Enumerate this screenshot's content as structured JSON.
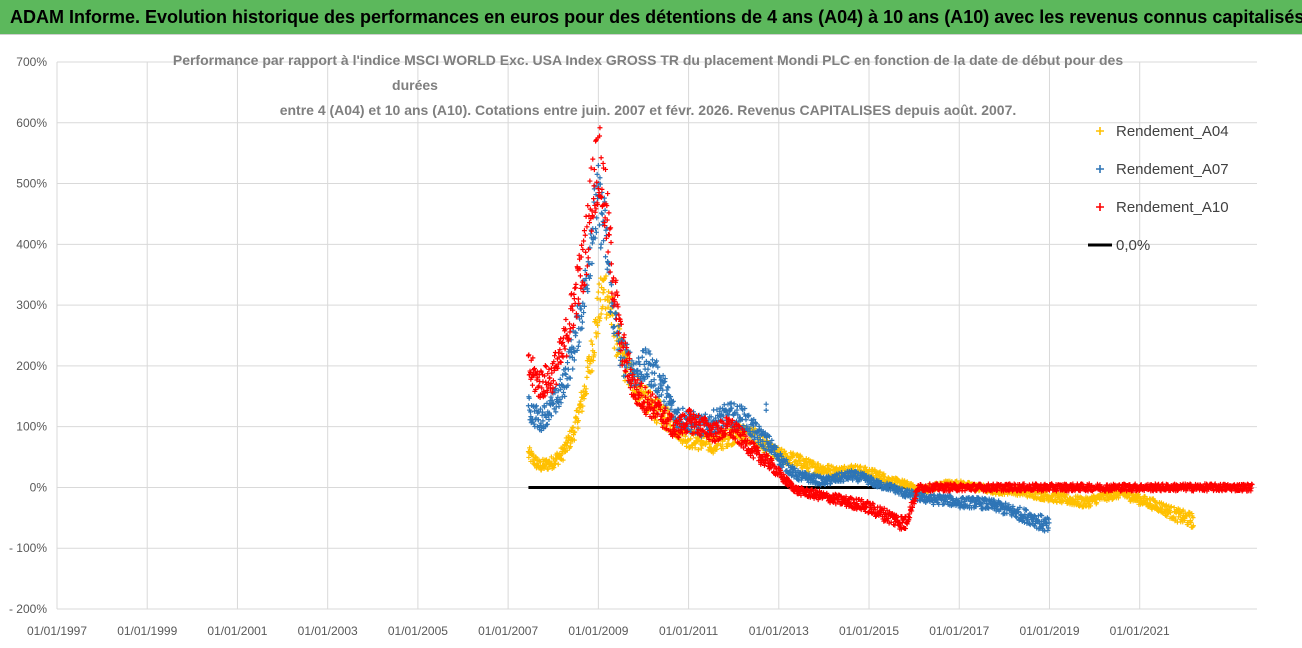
{
  "banner": {
    "title": "ADAM Informe. Evolution historique des performances en euros pour des détentions de 4 ans (A04) à 10 ans (A10) avec les revenus connus capitalisés"
  },
  "colors": {
    "banner_bg": "#5cb85c",
    "A04": "#ffc000",
    "A07": "#2e75b6",
    "A10": "#ff0000",
    "zero": "#000000",
    "grid": "#d9d9d9"
  },
  "chart_data": {
    "type": "scatter",
    "title_lines": [
      "Performance par rapport à l'indice MSCI WORLD Exc. USA Index GROSS TR  du placement Mondi PLC en fonction de la date de début pour des",
      "durées",
      "entre 4 (A04) et 10 ans (A10). Cotations entre juin. 2007 et févr. 2026. Revenus CAPITALISES depuis août. 2007."
    ],
    "xlabel": "",
    "ylabel": "",
    "xlim": [
      1997.0,
      2023.6
    ],
    "ylim": [
      -200,
      700
    ],
    "y_ticks": [
      "700%",
      "600%",
      "500%",
      "400%",
      "300%",
      "200%",
      "100%",
      "0%",
      "- 100%",
      "- 200%"
    ],
    "y_tick_values": [
      700,
      600,
      500,
      400,
      300,
      200,
      100,
      0,
      -100,
      -200
    ],
    "x_ticks": [
      "01/01/1997",
      "01/01/1999",
      "01/01/2001",
      "01/01/2003",
      "01/01/2005",
      "01/01/2007",
      "01/01/2009",
      "01/01/2011",
      "01/01/2013",
      "01/01/2015",
      "01/01/2017",
      "01/01/2019",
      "01/01/2021"
    ],
    "x_tick_values": [
      1997,
      1999,
      2001,
      2003,
      2005,
      2007,
      2009,
      2011,
      2013,
      2015,
      2017,
      2019,
      2021
    ],
    "legend": [
      "Rendement_A04",
      "Rendement_A07",
      "Rendement_A10",
      "0,0%"
    ],
    "legend_position": "top-right",
    "series": [
      {
        "name": "Rendement_A04",
        "x": [
          2007.45,
          2007.7,
          2007.95,
          2008.2,
          2008.45,
          2008.7,
          2008.85,
          2009.0,
          2009.15,
          2009.3,
          2009.5,
          2009.8,
          2010.1,
          2010.4,
          2010.7,
          2011.0,
          2011.3,
          2011.6,
          2011.9,
          2012.2,
          2012.5,
          2012.8,
          2013.1,
          2013.4,
          2013.7,
          2014.0,
          2014.3,
          2014.6,
          2014.9,
          2015.2,
          2015.5,
          2015.8,
          2016.1,
          2016.4,
          2016.7,
          2017.0,
          2017.4,
          2017.8,
          2018.2,
          2018.6,
          2019.0,
          2019.4,
          2019.8,
          2020.2,
          2020.6,
          2021.0,
          2021.4,
          2021.8,
          2022.2
        ],
        "values": [
          55,
          35,
          40,
          55,
          90,
          160,
          220,
          290,
          330,
          280,
          220,
          170,
          140,
          120,
          100,
          80,
          75,
          70,
          85,
          90,
          80,
          60,
          50,
          45,
          35,
          30,
          25,
          30,
          25,
          20,
          10,
          5,
          -5,
          0,
          5,
          5,
          0,
          -5,
          -5,
          -10,
          -15,
          -20,
          -25,
          -15,
          -10,
          -20,
          -30,
          -45,
          -55
        ]
      },
      {
        "name": "Rendement_A07",
        "x": [
          2007.45,
          2007.7,
          2007.95,
          2008.2,
          2008.45,
          2008.7,
          2008.85,
          2009.0,
          2009.15,
          2009.3,
          2009.5,
          2009.8,
          2010.1,
          2010.4,
          2010.7,
          2011.0,
          2011.3,
          2011.6,
          2011.9,
          2012.2,
          2012.5,
          2012.8,
          2013.1,
          2013.4,
          2013.7,
          2014.0,
          2014.3,
          2014.6,
          2014.9,
          2015.2,
          2015.5,
          2015.8,
          2016.1,
          2016.4,
          2016.7,
          2017.0,
          2017.4,
          2017.8,
          2018.2,
          2018.6,
          2019.0
        ],
        "values": [
          130,
          110,
          130,
          160,
          230,
          320,
          420,
          470,
          420,
          300,
          220,
          190,
          200,
          170,
          120,
          110,
          100,
          110,
          120,
          115,
          90,
          70,
          40,
          20,
          15,
          10,
          15,
          20,
          15,
          5,
          0,
          -10,
          -15,
          -20,
          -20,
          -25,
          -25,
          -30,
          -40,
          -50,
          -65
        ]
      },
      {
        "name": "Rendement_A10",
        "x": [
          2007.45,
          2007.7,
          2007.95,
          2008.2,
          2008.45,
          2008.7,
          2008.85,
          2009.0,
          2009.15,
          2009.3,
          2009.5,
          2009.8,
          2010.1,
          2010.4,
          2010.7,
          2011.0,
          2011.3,
          2011.6,
          2011.9,
          2012.2,
          2012.5,
          2012.8,
          2013.1,
          2013.4,
          2013.7,
          2014.0,
          2014.3,
          2014.6,
          2014.9,
          2015.2,
          2015.5,
          2015.8,
          2016.1,
          2016.5,
          2017.0,
          2017.5,
          2018.0,
          2018.5,
          2019.0,
          2019.5,
          2020.0,
          2020.5,
          2021.0,
          2021.5,
          2022.0,
          2022.5,
          2023.0,
          2023.5
        ],
        "values": [
          195,
          170,
          180,
          220,
          300,
          380,
          480,
          540,
          470,
          360,
          240,
          160,
          140,
          120,
          95,
          110,
          100,
          90,
          100,
          80,
          55,
          40,
          15,
          -5,
          -10,
          -15,
          -20,
          -25,
          -30,
          -40,
          -50,
          -60,
          0,
          0,
          0,
          0,
          0,
          0,
          0,
          0,
          0,
          0,
          0,
          0,
          0,
          0,
          0,
          0
        ]
      },
      {
        "name": "0,0%",
        "x": [
          2007.45,
          2015.9
        ],
        "values": [
          0,
          0
        ]
      }
    ],
    "outlier_points": [
      {
        "series": "Rendement_A07",
        "x": 2012.72,
        "value": 137
      },
      {
        "series": "Rendement_A07",
        "x": 2012.72,
        "value": 127
      }
    ]
  }
}
